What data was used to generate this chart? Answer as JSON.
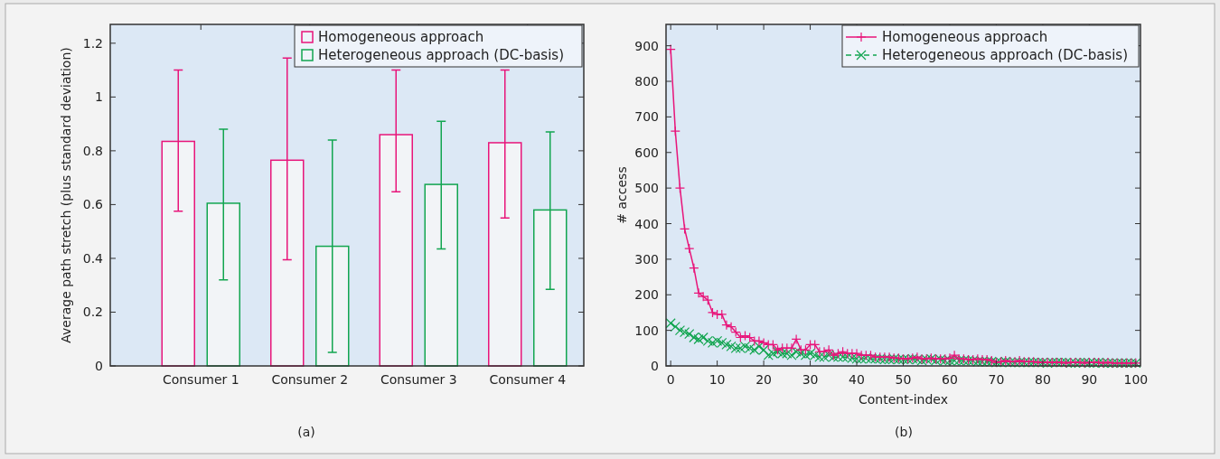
{
  "chart_data": [
    {
      "type": "bar",
      "categories": [
        "Consumer 1",
        "Consumer 2",
        "Consumer 3",
        "Consumer 4"
      ],
      "ylabel": "Average path stretch (plus standard deviation)",
      "ylim": [
        0,
        1.27
      ],
      "yticks": [
        0,
        0.2,
        0.4,
        0.6,
        0.8,
        1,
        1.2
      ],
      "legend": "top right",
      "annotations": [
        "(a)"
      ],
      "series": [
        {
          "name": "Homogeneous approach",
          "color": "#e8157a",
          "values": [
            0.835,
            0.765,
            0.86,
            0.83
          ],
          "errors": [
            [
              0.575,
              1.1
            ],
            [
              0.395,
              1.145
            ],
            [
              0.648,
              1.1
            ],
            [
              0.55,
              1.1
            ]
          ]
        },
        {
          "name": "Heterogeneous approach (DC-basis)",
          "color": "#12a550",
          "values": [
            0.605,
            0.445,
            0.675,
            0.58
          ],
          "errors": [
            [
              0.32,
              0.88
            ],
            [
              0.05,
              0.84
            ],
            [
              0.435,
              0.91
            ],
            [
              0.285,
              0.87
            ]
          ]
        }
      ]
    },
    {
      "type": "line",
      "xlabel": "Content-index",
      "ylabel": "# access",
      "xlim": [
        -1,
        101
      ],
      "xticks": [
        0,
        10,
        20,
        30,
        40,
        50,
        60,
        70,
        80,
        90,
        100
      ],
      "ylim": [
        0,
        960
      ],
      "yticks": [
        0,
        100,
        200,
        300,
        400,
        500,
        600,
        700,
        800,
        900
      ],
      "legend": "top right",
      "annotations": [
        "(b)"
      ],
      "x": [
        0,
        1,
        2,
        3,
        4,
        5,
        6,
        7,
        8,
        9,
        10,
        11,
        12,
        13,
        14,
        15,
        16,
        17,
        18,
        19,
        20,
        21,
        22,
        23,
        24,
        25,
        26,
        27,
        28,
        29,
        30,
        31,
        32,
        33,
        34,
        35,
        36,
        37,
        38,
        39,
        40,
        41,
        42,
        43,
        44,
        45,
        46,
        47,
        48,
        49,
        50,
        51,
        52,
        53,
        54,
        55,
        56,
        57,
        58,
        59,
        60,
        61,
        62,
        63,
        64,
        65,
        66,
        67,
        68,
        69,
        70,
        71,
        72,
        73,
        74,
        75,
        76,
        77,
        78,
        79,
        80,
        81,
        82,
        83,
        84,
        85,
        86,
        87,
        88,
        89,
        90,
        91,
        92,
        93,
        94,
        95,
        96,
        97,
        98,
        99,
        100
      ],
      "series": [
        {
          "name": "Homogeneous approach",
          "color": "#e8157a",
          "marker": "cross",
          "line_style": "solid",
          "values": [
            890,
            660,
            500,
            385,
            330,
            275,
            205,
            195,
            185,
            150,
            145,
            145,
            115,
            110,
            95,
            80,
            85,
            80,
            70,
            70,
            65,
            60,
            60,
            45,
            50,
            50,
            50,
            75,
            45,
            45,
            60,
            60,
            40,
            40,
            45,
            30,
            35,
            40,
            35,
            35,
            35,
            30,
            30,
            30,
            25,
            25,
            25,
            25,
            22,
            22,
            20,
            20,
            22,
            25,
            20,
            20,
            22,
            20,
            20,
            20,
            22,
            30,
            20,
            20,
            18,
            18,
            20,
            18,
            18,
            15,
            10,
            12,
            15,
            12,
            12,
            15,
            12,
            12,
            12,
            10,
            10,
            10,
            10,
            10,
            10,
            8,
            10,
            10,
            10,
            8,
            10,
            10,
            10,
            8,
            10,
            8,
            8,
            8,
            8,
            8,
            8
          ]
        },
        {
          "name": "Heterogeneous approach (DC-basis)",
          "color": "#12a550",
          "marker": "x",
          "line_style": "dashed",
          "values": [
            120,
            110,
            100,
            95,
            90,
            80,
            75,
            80,
            70,
            65,
            70,
            65,
            60,
            55,
            50,
            50,
            55,
            50,
            45,
            55,
            45,
            30,
            35,
            40,
            35,
            35,
            30,
            40,
            35,
            30,
            35,
            30,
            25,
            25,
            30,
            25,
            25,
            25,
            25,
            22,
            20,
            20,
            22,
            20,
            20,
            20,
            18,
            18,
            20,
            18,
            18,
            18,
            20,
            18,
            15,
            18,
            20,
            15,
            18,
            15,
            15,
            15,
            15,
            15,
            15,
            15,
            12,
            12,
            12,
            12,
            10,
            10,
            12,
            10,
            10,
            10,
            10,
            10,
            10,
            10,
            10,
            8,
            10,
            10,
            10,
            10,
            8,
            8,
            10,
            10,
            8,
            8,
            10,
            8,
            8,
            8,
            8,
            8,
            8,
            8,
            8
          ]
        }
      ]
    }
  ]
}
